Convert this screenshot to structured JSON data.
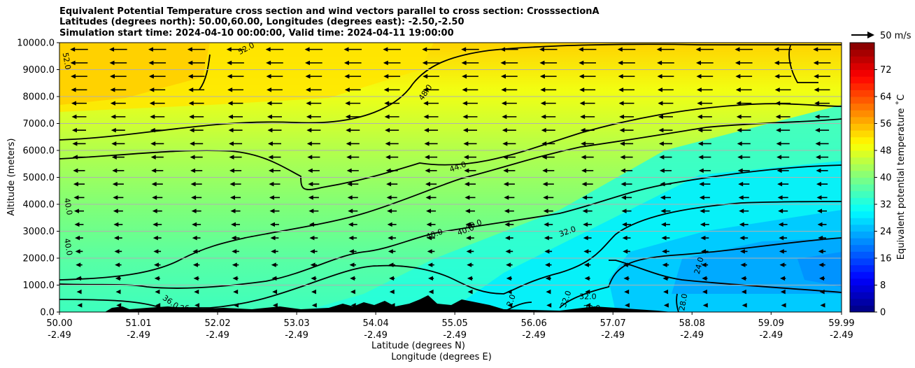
{
  "chart_data": {
    "type": "contour",
    "title_lines": [
      "Equivalent Potential Temperature cross section and wind vectors parallel to cross section: CrosssectionA",
      "Latitudes (degrees north): 50.00,60.00, Longitudes (degrees east): -2.50,-2.50",
      "Simulation start time: 2024-04-10 00:00:00, Valid time: 2024-04-11 19:00:00"
    ],
    "xlabel": "Latitude (degrees N)",
    "xlabel2": "Longitude (degrees E)",
    "ylabel": "Altitude (meters)",
    "xlim": [
      50.0,
      59.99
    ],
    "ylim": [
      0,
      10000
    ],
    "x_ticks": [
      {
        "lat": "50.00",
        "lon": "-2.49",
        "value": 50.0
      },
      {
        "lat": "51.01",
        "lon": "-2.49",
        "value": 51.01
      },
      {
        "lat": "52.02",
        "lon": "-2.49",
        "value": 52.02
      },
      {
        "lat": "53.03",
        "lon": "-2.49",
        "value": 53.03
      },
      {
        "lat": "54.04",
        "lon": "-2.49",
        "value": 54.04
      },
      {
        "lat": "55.05",
        "lon": "-2.49",
        "value": 55.05
      },
      {
        "lat": "56.06",
        "lon": "-2.49",
        "value": 56.06
      },
      {
        "lat": "57.07",
        "lon": "-2.49",
        "value": 57.07
      },
      {
        "lat": "58.08",
        "lon": "-2.49",
        "value": 58.08
      },
      {
        "lat": "59.09",
        "lon": "-2.49",
        "value": 59.09
      },
      {
        "lat": "59.99",
        "lon": "-2.49",
        "value": 59.99
      }
    ],
    "y_ticks": [
      {
        "label": "0.0",
        "value": 0
      },
      {
        "label": "1000.0",
        "value": 1000
      },
      {
        "label": "2000.0",
        "value": 2000
      },
      {
        "label": "3000.0",
        "value": 3000
      },
      {
        "label": "4000.0",
        "value": 4000
      },
      {
        "label": "5000.0",
        "value": 5000
      },
      {
        "label": "6000.0",
        "value": 6000
      },
      {
        "label": "7000.0",
        "value": 7000
      },
      {
        "label": "8000.0",
        "value": 8000
      },
      {
        "label": "9000.0",
        "value": 9000
      },
      {
        "label": "10000.0",
        "value": 10000
      }
    ],
    "grid": "horizontal",
    "colorbar": {
      "label": "Equivalent potential temperature ˚C",
      "range": [
        0,
        80
      ],
      "ticks": [
        "0",
        "8",
        "16",
        "24",
        "32",
        "40",
        "48",
        "56",
        "64",
        "72"
      ],
      "tick_values": [
        0,
        8,
        16,
        24,
        32,
        40,
        48,
        56,
        64,
        72
      ],
      "colormap": "jet"
    },
    "quiver_key": "50 m/s",
    "contour_labels": [
      {
        "text": "52.0",
        "x": 52.4,
        "y": 9700,
        "rot": -28
      },
      {
        "text": "52.0",
        "x": 50.06,
        "y": 9300,
        "rot": 80
      },
      {
        "text": "48.0",
        "x": 54.7,
        "y": 8100,
        "rot": -55
      },
      {
        "text": "44.0",
        "x": 55.1,
        "y": 5300,
        "rot": -20
      },
      {
        "text": "40.0",
        "x": 50.08,
        "y": 3900,
        "rot": 80
      },
      {
        "text": "40.0",
        "x": 50.08,
        "y": 2400,
        "rot": 80
      },
      {
        "text": "40.0",
        "x": 54.8,
        "y": 2800,
        "rot": -20
      },
      {
        "text": "40.0",
        "x": 55.2,
        "y": 2950,
        "rot": -20
      },
      {
        "text": "40.0",
        "x": 55.3,
        "y": 3150,
        "rot": -20
      },
      {
        "text": "32.0",
        "x": 56.5,
        "y": 2900,
        "rot": -20
      },
      {
        "text": "24.0",
        "x": 58.2,
        "y": 1700,
        "rot": -75
      },
      {
        "text": "36.0",
        "x": 51.4,
        "y": 300,
        "rot": 35
      },
      {
        "text": "36",
        "x": 51.6,
        "y": 50,
        "rot": 0
      },
      {
        "text": "32.0",
        "x": 56.5,
        "y": 450,
        "rot": -70
      },
      {
        "text": "32.0",
        "x": 56.75,
        "y": 480,
        "rot": 0
      },
      {
        "text": "28.0",
        "x": 56.8,
        "y": 50,
        "rot": 0
      },
      {
        "text": "2.0",
        "x": 55.8,
        "y": 400,
        "rot": -70
      },
      {
        "text": "28.0",
        "x": 58.0,
        "y": 350,
        "rot": -80
      }
    ],
    "theta_e_levels": [
      36,
      40,
      44,
      48,
      52
    ],
    "wind_direction": "southward (arrows point toward lower latitude)"
  }
}
